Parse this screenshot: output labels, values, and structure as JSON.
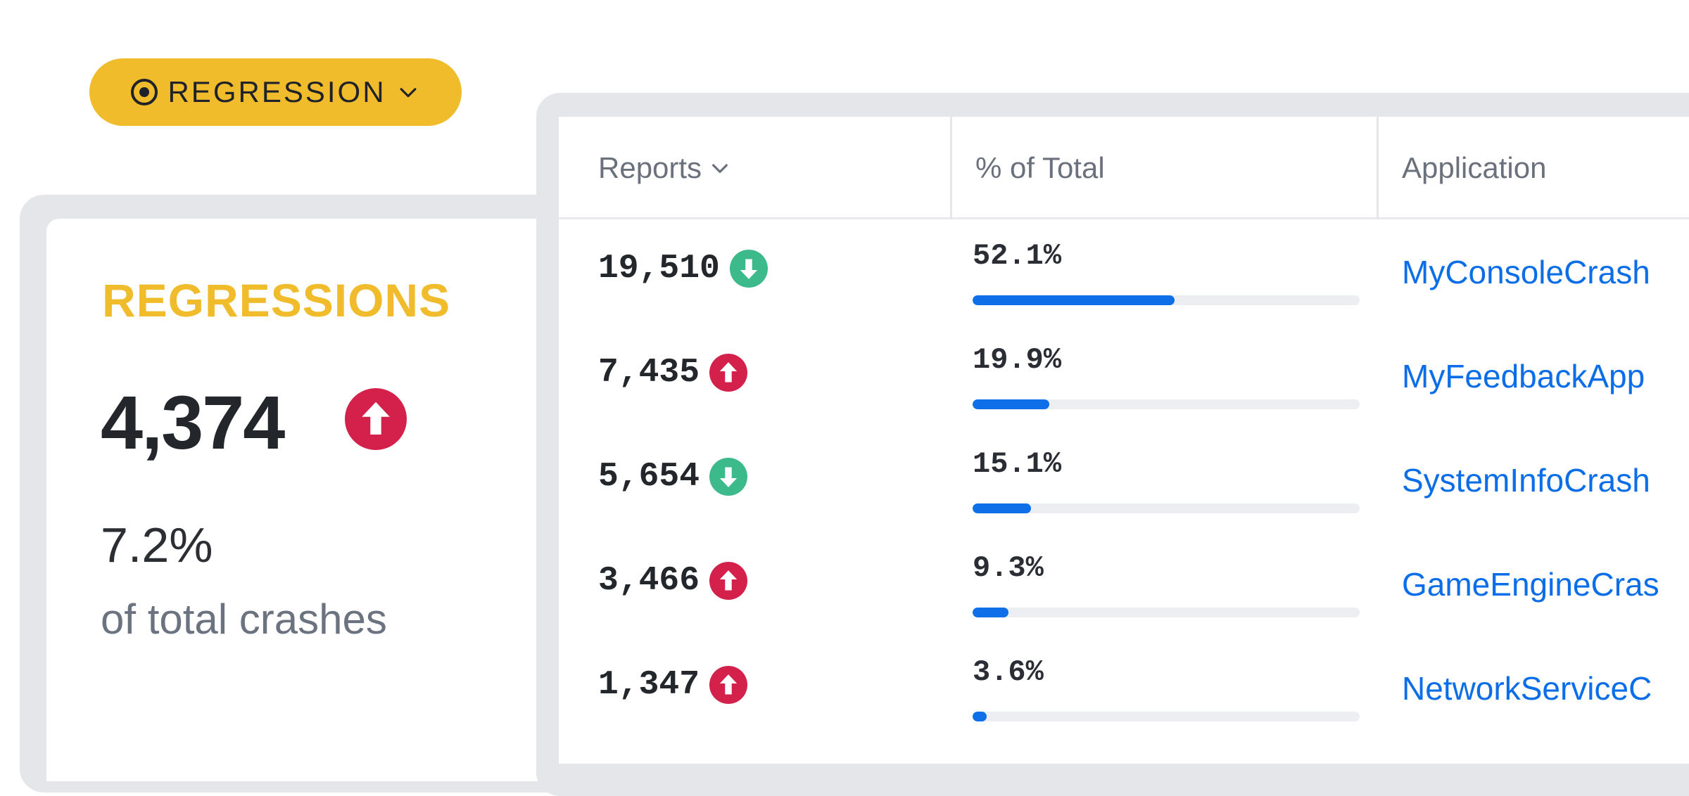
{
  "filter": {
    "label": "REGRESSION"
  },
  "summary": {
    "title": "REGRESSIONS",
    "value": "4,374",
    "trend": "up",
    "percent": "7.2%",
    "caption": "of total crashes"
  },
  "table": {
    "columns": {
      "reports": "Reports",
      "percent": "% of Total",
      "application": "Application"
    },
    "rows": [
      {
        "reports": "19,510",
        "trend": "down",
        "percent": "52.1%",
        "fraction": 0.521,
        "application": "MyConsoleCrash"
      },
      {
        "reports": "7,435",
        "trend": "up",
        "percent": "19.9%",
        "fraction": 0.199,
        "application": "MyFeedbackApp"
      },
      {
        "reports": "5,654",
        "trend": "down",
        "percent": "15.1%",
        "fraction": 0.151,
        "application": "SystemInfoCrash"
      },
      {
        "reports": "3,466",
        "trend": "up",
        "percent": "9.3%",
        "fraction": 0.093,
        "application": "GameEngineCras"
      },
      {
        "reports": "1,347",
        "trend": "up",
        "percent": "3.6%",
        "fraction": 0.036,
        "application": "NetworkServiceC"
      }
    ]
  },
  "colors": {
    "accent": "#f0bc2c",
    "up": "#d3214b",
    "down": "#3dba8c",
    "link": "#0b6ee8",
    "bar": "#0f6fe8"
  },
  "icons": {
    "filter": "target-icon",
    "dropdown": "chevron-down-icon",
    "up": "arrow-up-circle-icon",
    "down": "arrow-down-circle-icon"
  }
}
